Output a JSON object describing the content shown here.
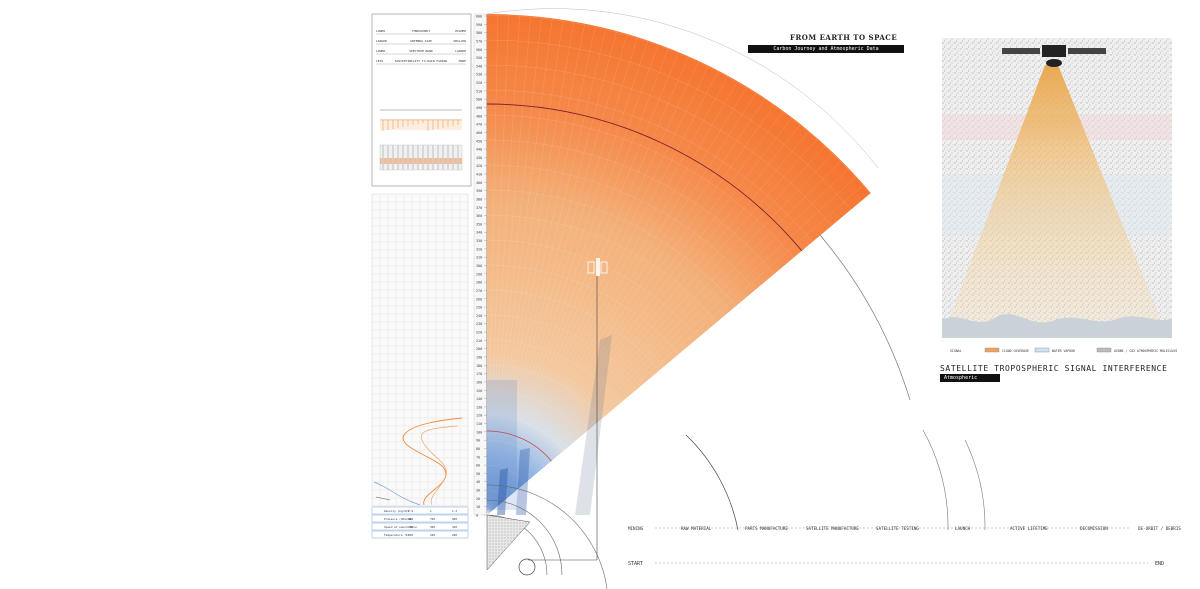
{
  "header": {
    "title": "FROM EARTH TO SPACE",
    "subtitle": "Carbon Journey and Atmospheric Data"
  },
  "satellite_panel": {
    "title": "SATELLITE TROPOSPHERIC SIGNAL INTERFERENCE",
    "subtitle": "Atmospheric losses",
    "legend": [
      {
        "label": "SIGNAL",
        "color": "#ffffff"
      },
      {
        "label": "CLOUD COVERAGE",
        "color": "#f3a15c"
      },
      {
        "label": "WATER VAPOUR",
        "color": "#cfe0f2"
      },
      {
        "label": "OZONE / CO2 ATMOSPHERIC MOLECULES",
        "color": "#bbbbbb"
      }
    ]
  },
  "comparison_rows": [
    {
      "left": "LOWER",
      "center": "THROUGHPUT",
      "right": "HIGHER"
    },
    {
      "left": "LARGER",
      "center": "ANTENNA SIZE",
      "right": "SMALLER"
    },
    {
      "left": "LOWER",
      "center": "SPECTRUM BAND",
      "right": "LARGER"
    },
    {
      "left": "LESS",
      "center": "SUSCEPTIBILITY TO RAIN FADING",
      "right": "MORE"
    }
  ],
  "lifecycle": {
    "stages": [
      "MINING",
      "RAW MATERIAL",
      "PARTS MANUFACTURE",
      "SATELLITE MANUFACTURE",
      "SATELLITE TESTING",
      "LAUNCH",
      "ACTIVE LIFETIME",
      "DECOMISSION",
      "DE-ORBIT / DEBRIS"
    ],
    "start": "START",
    "end": "END"
  },
  "altitude_scale": [
    "600",
    "590",
    "580",
    "570",
    "560",
    "550",
    "540",
    "530",
    "520",
    "510",
    "500",
    "490",
    "480",
    "470",
    "460",
    "450",
    "440",
    "430",
    "420",
    "410",
    "400",
    "390",
    "380",
    "370",
    "360",
    "350",
    "340",
    "330",
    "320",
    "310",
    "300",
    "290",
    "280",
    "270",
    "260",
    "250",
    "240",
    "230",
    "220",
    "210",
    "200",
    "190",
    "180",
    "170",
    "160",
    "150",
    "140",
    "130",
    "120",
    "110",
    "100",
    "90",
    "80",
    "70",
    "60",
    "50",
    "40",
    "30",
    "20",
    "10",
    "0"
  ],
  "bottom_table": {
    "rows": [
      {
        "label": "Density (kg/m3)",
        "values": [
          "0.9",
          "1",
          "1.3"
        ]
      },
      {
        "label": "Pressure (hPa/m2)",
        "values": [
          "400",
          "700",
          "900"
        ]
      },
      {
        "label": "Speed of sound (m/s)",
        "values": [
          "290",
          "300",
          "340"
        ]
      },
      {
        "label": "Temperature (K)",
        "values": [
          "220",
          "240",
          "290"
        ]
      }
    ]
  },
  "colors": {
    "orange": "#f5783a",
    "peach": "#f3c08d",
    "blue": "#5e8fd2",
    "dark": "#111111"
  }
}
